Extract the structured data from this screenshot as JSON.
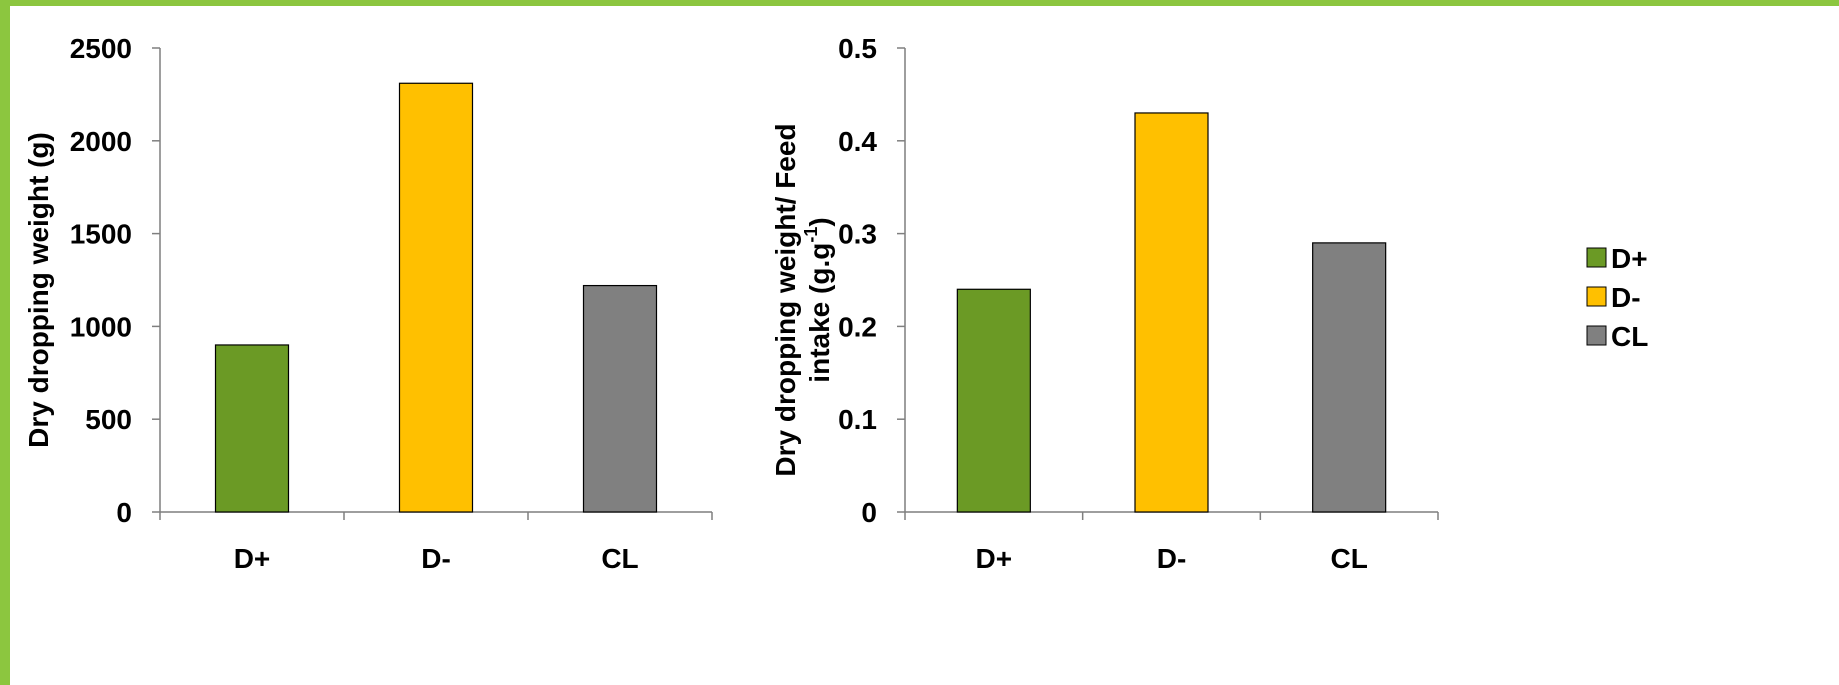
{
  "colors": {
    "frame": "#8cc63f",
    "axis": "#7f7f7f",
    "bar_outline": "#000000",
    "series": {
      "D+": "#6b9a25",
      "D-": "#ffc000",
      "CL": "#808080"
    }
  },
  "legend": {
    "placement": "right",
    "entries": [
      "D+",
      "D-",
      "CL"
    ]
  },
  "chart_data": [
    {
      "type": "bar",
      "categories": [
        "D+",
        "D-",
        "CL"
      ],
      "values": [
        900,
        2310,
        1220
      ],
      "title": "",
      "xlabel": "",
      "ylabel": "Dry dropping weight (g)",
      "ylim": [
        0,
        2500
      ],
      "yticks": [
        "0",
        "500",
        "1000",
        "1500",
        "2000",
        "2500"
      ],
      "grid": false
    },
    {
      "type": "bar",
      "categories": [
        "D+",
        "D-",
        "CL"
      ],
      "values": [
        0.24,
        0.43,
        0.29
      ],
      "title": "",
      "xlabel": "",
      "ylabel_line1": "Dry dropping weight/ Feed",
      "ylabel_line2_text": "intake (g.g",
      "ylabel_line2_sup": "-1",
      "ylabel_line2_end": ")",
      "ylim": [
        0,
        0.5
      ],
      "yticks": [
        "0",
        "0.1",
        "0.2",
        "0.3",
        "0.4",
        "0.5"
      ],
      "grid": false
    }
  ]
}
